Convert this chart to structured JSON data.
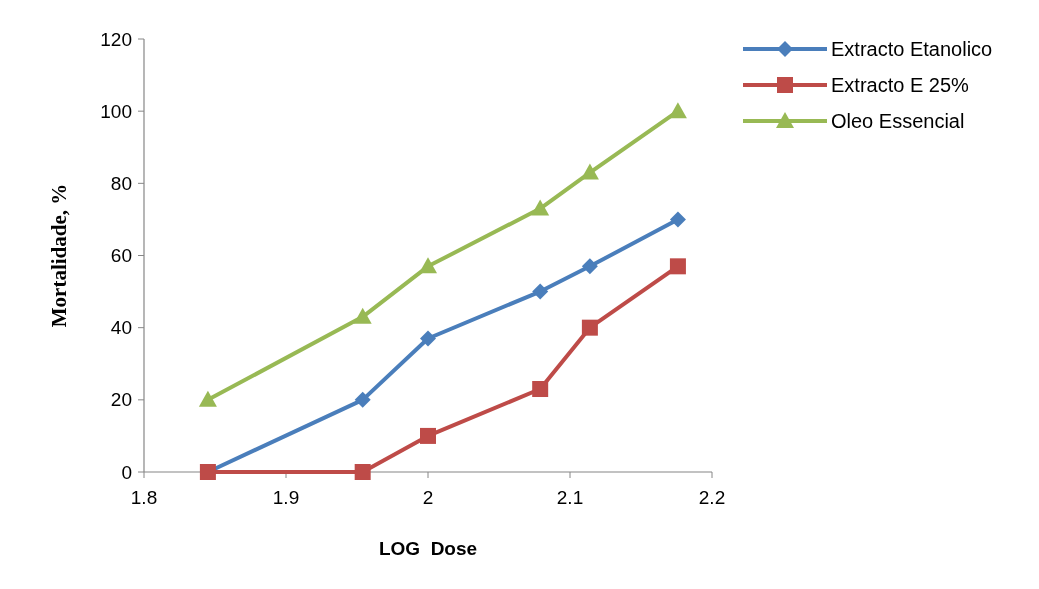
{
  "chart_data": {
    "type": "line",
    "xlabel": "LOG  Dose",
    "ylabel": "Mortalidade, %",
    "xlim": [
      1.8,
      2.2
    ],
    "xticks": [
      1.8,
      1.9,
      {
        "value": 2,
        "label": "2"
      },
      2.1,
      2.2
    ],
    "ylim": [
      0,
      120
    ],
    "yticks": [
      0,
      20,
      40,
      60,
      80,
      100,
      120
    ],
    "grid": false,
    "legend": "top right",
    "series": [
      {
        "name": "Extracto Etanolico",
        "color": "#4a7ebb",
        "marker": "diamond",
        "x": [
          1.845,
          1.954,
          2,
          2.079,
          2.114,
          2.176
        ],
        "values": [
          0,
          20,
          37,
          50,
          57,
          70
        ]
      },
      {
        "name": "Extracto E 25%",
        "color": "#be4b48",
        "marker": "square",
        "x": [
          1.845,
          1.954,
          2,
          2.079,
          2.114,
          2.176
        ],
        "values": [
          0,
          0,
          10,
          23,
          40,
          57
        ]
      },
      {
        "name": "Oleo Essencial",
        "color": "#98b954",
        "marker": "triangle",
        "x": [
          1.845,
          1.954,
          2,
          2.079,
          2.114,
          2.176
        ],
        "values": [
          20,
          43,
          57,
          73,
          83,
          100
        ]
      }
    ]
  }
}
